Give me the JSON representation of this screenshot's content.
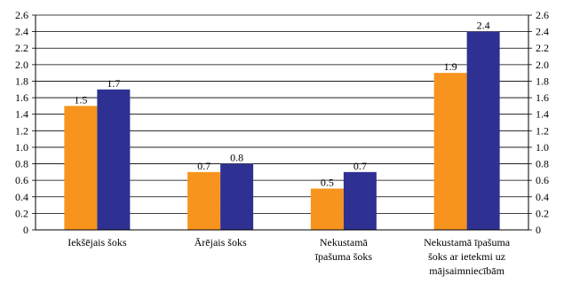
{
  "chart_data": {
    "type": "bar",
    "categories": [
      [
        "Iekšējais šoks"
      ],
      [
        "Ārējais šoks"
      ],
      [
        "Nekustamā",
        "īpašuma šoks"
      ],
      [
        "Nekustamā īpašuma",
        "šoks ar ietekmi uz",
        "mājsaimniecībām"
      ]
    ],
    "series": [
      {
        "color": "#f7941d",
        "values": [
          1.5,
          0.7,
          0.5,
          1.9
        ],
        "labels": [
          "1.5",
          "0.7",
          "0.5",
          "1.9"
        ]
      },
      {
        "color": "#2e3192",
        "values": [
          1.7,
          0.8,
          0.7,
          2.4
        ],
        "labels": [
          "1.7",
          "0.8",
          "0.7",
          "2.4"
        ]
      }
    ],
    "yticks": [
      "0",
      "0.2",
      "0.4",
      "0.6",
      "0.8",
      "1.0",
      "1.2",
      "1.4",
      "1.6",
      "1.8",
      "2.0",
      "2.2",
      "2.4",
      "2.6"
    ],
    "ylim": [
      0,
      2.6
    ],
    "y_axes": "left-and-right",
    "grid": true,
    "legend": "none",
    "title": "",
    "xlabel": "",
    "ylabel": ""
  }
}
